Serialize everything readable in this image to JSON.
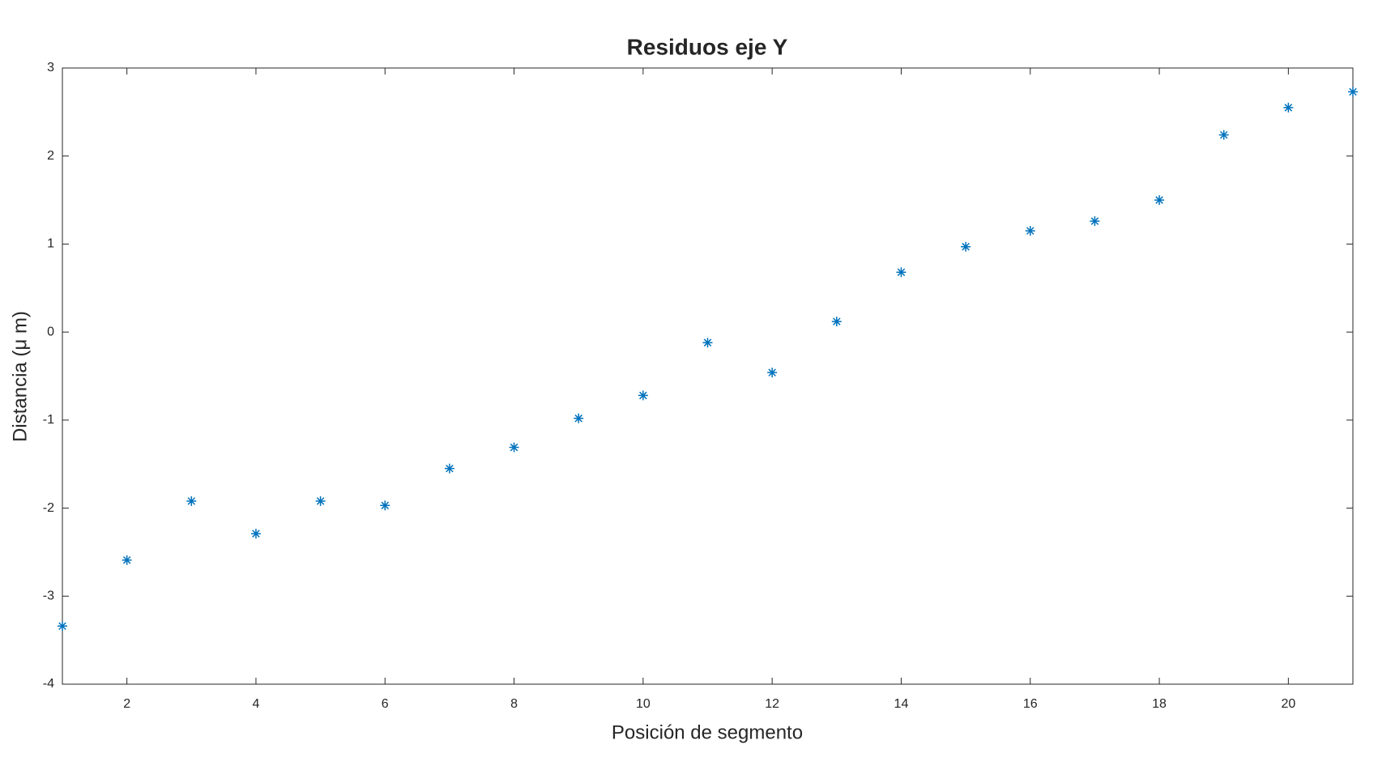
{
  "chart_data": {
    "type": "scatter",
    "title": "Residuos eje Y",
    "x_label": "Posición de segmento",
    "y_label": "Distancia (μ m)",
    "series": [
      {
        "name": "Residuos",
        "color": "#0072bd",
        "marker": "asterisk",
        "x": [
          1,
          2,
          3,
          4,
          5,
          6,
          7,
          8,
          9,
          10,
          11,
          12,
          13,
          14,
          15,
          16,
          17,
          18,
          19,
          20,
          21
        ],
        "values": [
          -3.34,
          -2.59,
          -1.92,
          -2.29,
          -1.92,
          -1.97,
          -1.55,
          -1.31,
          -0.98,
          -0.72,
          -0.12,
          -0.46,
          0.12,
          0.68,
          0.97,
          1.15,
          1.26,
          1.5,
          2.24,
          2.55,
          2.73
        ]
      }
    ],
    "xlim": [
      1,
      21
    ],
    "xticks": [
      2,
      4,
      6,
      8,
      10,
      12,
      14,
      16,
      18,
      20
    ],
    "ylim": [
      -4,
      3
    ],
    "yticks": [
      -4,
      -3,
      -2,
      -1,
      0,
      1,
      2,
      3
    ],
    "grid": false
  }
}
